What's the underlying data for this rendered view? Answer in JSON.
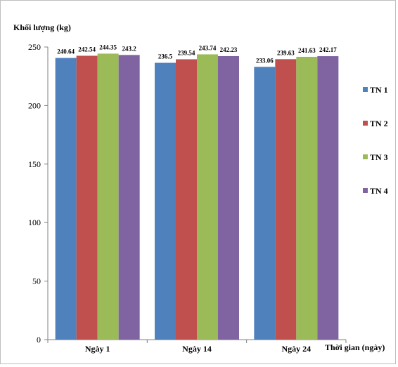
{
  "chart_data": {
    "type": "bar",
    "ylabel": "Khối lượng (kg)",
    "xlabel": "Thời gian (ngày)",
    "categories": [
      "Ngày 1",
      "Ngày 14",
      "Ngày 24"
    ],
    "series": [
      {
        "name": "TN 1",
        "color": "#4F81BD",
        "values": [
          240.64,
          236.5,
          233.06
        ],
        "labels": [
          "240.64",
          "236.5",
          "233.06"
        ]
      },
      {
        "name": "TN 2",
        "color": "#C0504D",
        "values": [
          242.54,
          239.54,
          239.63
        ],
        "labels": [
          "242.54",
          "239.54",
          "239.63"
        ]
      },
      {
        "name": "TN 3",
        "color": "#9BBB59",
        "values": [
          244.35,
          243.74,
          241.63
        ],
        "labels": [
          "244.35",
          "243.74",
          "241.63"
        ]
      },
      {
        "name": "TN 4",
        "color": "#8064A2",
        "values": [
          243.2,
          242.23,
          242.17
        ],
        "labels": [
          "243.2",
          "242.23",
          "242.17"
        ]
      }
    ],
    "ylim": [
      0,
      250
    ],
    "yticks": [
      0,
      50,
      100,
      150,
      200,
      250
    ],
    "grid": false,
    "legend_position": "right"
  }
}
